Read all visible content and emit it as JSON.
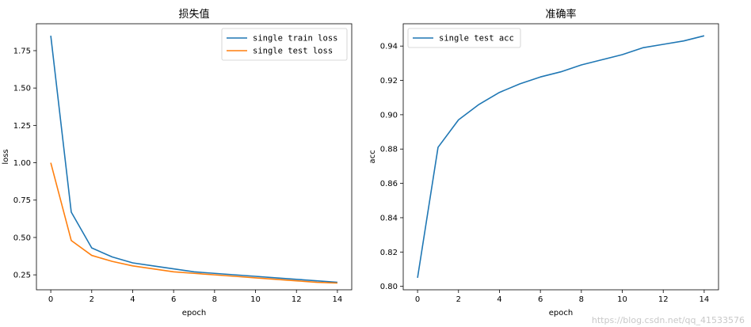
{
  "chart_data": [
    {
      "type": "line",
      "title": "损失值",
      "xlabel": "epoch",
      "ylabel": "loss",
      "x": [
        0,
        1,
        2,
        3,
        4,
        5,
        6,
        7,
        8,
        9,
        10,
        11,
        12,
        13,
        14
      ],
      "xlim": [
        -0.7,
        14.7
      ],
      "ylim": [
        0.15,
        1.93
      ],
      "xticks": [
        0,
        2,
        4,
        6,
        8,
        10,
        12,
        14
      ],
      "yticks": [
        0.25,
        0.5,
        0.75,
        1.0,
        1.25,
        1.5,
        1.75
      ],
      "ytick_labels": [
        "0.25",
        "0.50",
        "0.75",
        "1.00",
        "1.25",
        "1.50",
        "1.75"
      ],
      "legend_position": "top-right",
      "series": [
        {
          "name": "single train loss",
          "color": "#1f77b4",
          "values": [
            1.85,
            0.67,
            0.43,
            0.37,
            0.33,
            0.31,
            0.29,
            0.27,
            0.26,
            0.25,
            0.24,
            0.23,
            0.22,
            0.21,
            0.2
          ]
        },
        {
          "name": "single test loss",
          "color": "#ff7f0e",
          "values": [
            1.0,
            0.48,
            0.38,
            0.34,
            0.31,
            0.29,
            0.27,
            0.26,
            0.25,
            0.24,
            0.23,
            0.22,
            0.21,
            0.2,
            0.195
          ]
        }
      ]
    },
    {
      "type": "line",
      "title": "准确率",
      "xlabel": "epoch",
      "ylabel": "acc",
      "x": [
        0,
        1,
        2,
        3,
        4,
        5,
        6,
        7,
        8,
        9,
        10,
        11,
        12,
        13,
        14
      ],
      "xlim": [
        -0.7,
        14.7
      ],
      "ylim": [
        0.798,
        0.953
      ],
      "xticks": [
        0,
        2,
        4,
        6,
        8,
        10,
        12,
        14
      ],
      "yticks": [
        0.8,
        0.82,
        0.84,
        0.86,
        0.88,
        0.9,
        0.92,
        0.94
      ],
      "ytick_labels": [
        "0.80",
        "0.82",
        "0.84",
        "0.86",
        "0.88",
        "0.90",
        "0.92",
        "0.94"
      ],
      "legend_position": "top-left",
      "series": [
        {
          "name": "single test acc",
          "color": "#1f77b4",
          "values": [
            0.805,
            0.881,
            0.897,
            0.906,
            0.913,
            0.918,
            0.922,
            0.925,
            0.929,
            0.932,
            0.935,
            0.939,
            0.941,
            0.943,
            0.946
          ]
        }
      ]
    }
  ],
  "watermark": "https://blog.csdn.net/qq_41533576"
}
